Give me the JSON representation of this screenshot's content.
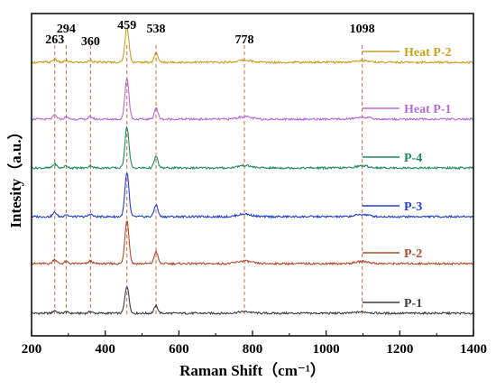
{
  "chart_data": {
    "type": "line",
    "xlabel": "Raman Shift（cm⁻¹）",
    "ylabel": "Intesity（a.u.）",
    "xlim": [
      200,
      1400
    ],
    "xticks": [
      200,
      400,
      600,
      800,
      1000,
      1200,
      1400
    ],
    "y_ticks_shown": false,
    "grid": false,
    "legend_placement": "right, beside each trace",
    "peak_lines": [
      263,
      294,
      360,
      459,
      538,
      778,
      1098
    ],
    "peak_labels": [
      "263",
      "294",
      "360",
      "459",
      "538",
      "778",
      "1098"
    ],
    "peak_line_color": "#c96a45",
    "peaks_model": [
      {
        "center": 263,
        "rel_height": 0.1
      },
      {
        "center": 294,
        "rel_height": 0.05
      },
      {
        "center": 360,
        "rel_height": 0.06
      },
      {
        "center": 459,
        "rel_height": 1.0
      },
      {
        "center": 538,
        "rel_height": 0.28
      },
      {
        "center": 778,
        "rel_height": 0.06
      },
      {
        "center": 1098,
        "rel_height": 0.05
      }
    ],
    "series": [
      {
        "name": "P-1",
        "color": "#3d3d3d",
        "offset": 0,
        "peak_height": 30
      },
      {
        "name": "P-2",
        "color": "#b24a2e",
        "offset": 55,
        "peak_height": 48
      },
      {
        "name": "P-3",
        "color": "#2340c8",
        "offset": 107,
        "peak_height": 48
      },
      {
        "name": "P-4",
        "color": "#1f8a5e",
        "offset": 161,
        "peak_height": 45
      },
      {
        "name": "Heat P-1",
        "color": "#b56bd6",
        "offset": 215,
        "peak_height": 45
      },
      {
        "name": "Heat P-2",
        "color": "#c8a020",
        "offset": 278,
        "peak_height": 38
      }
    ]
  }
}
